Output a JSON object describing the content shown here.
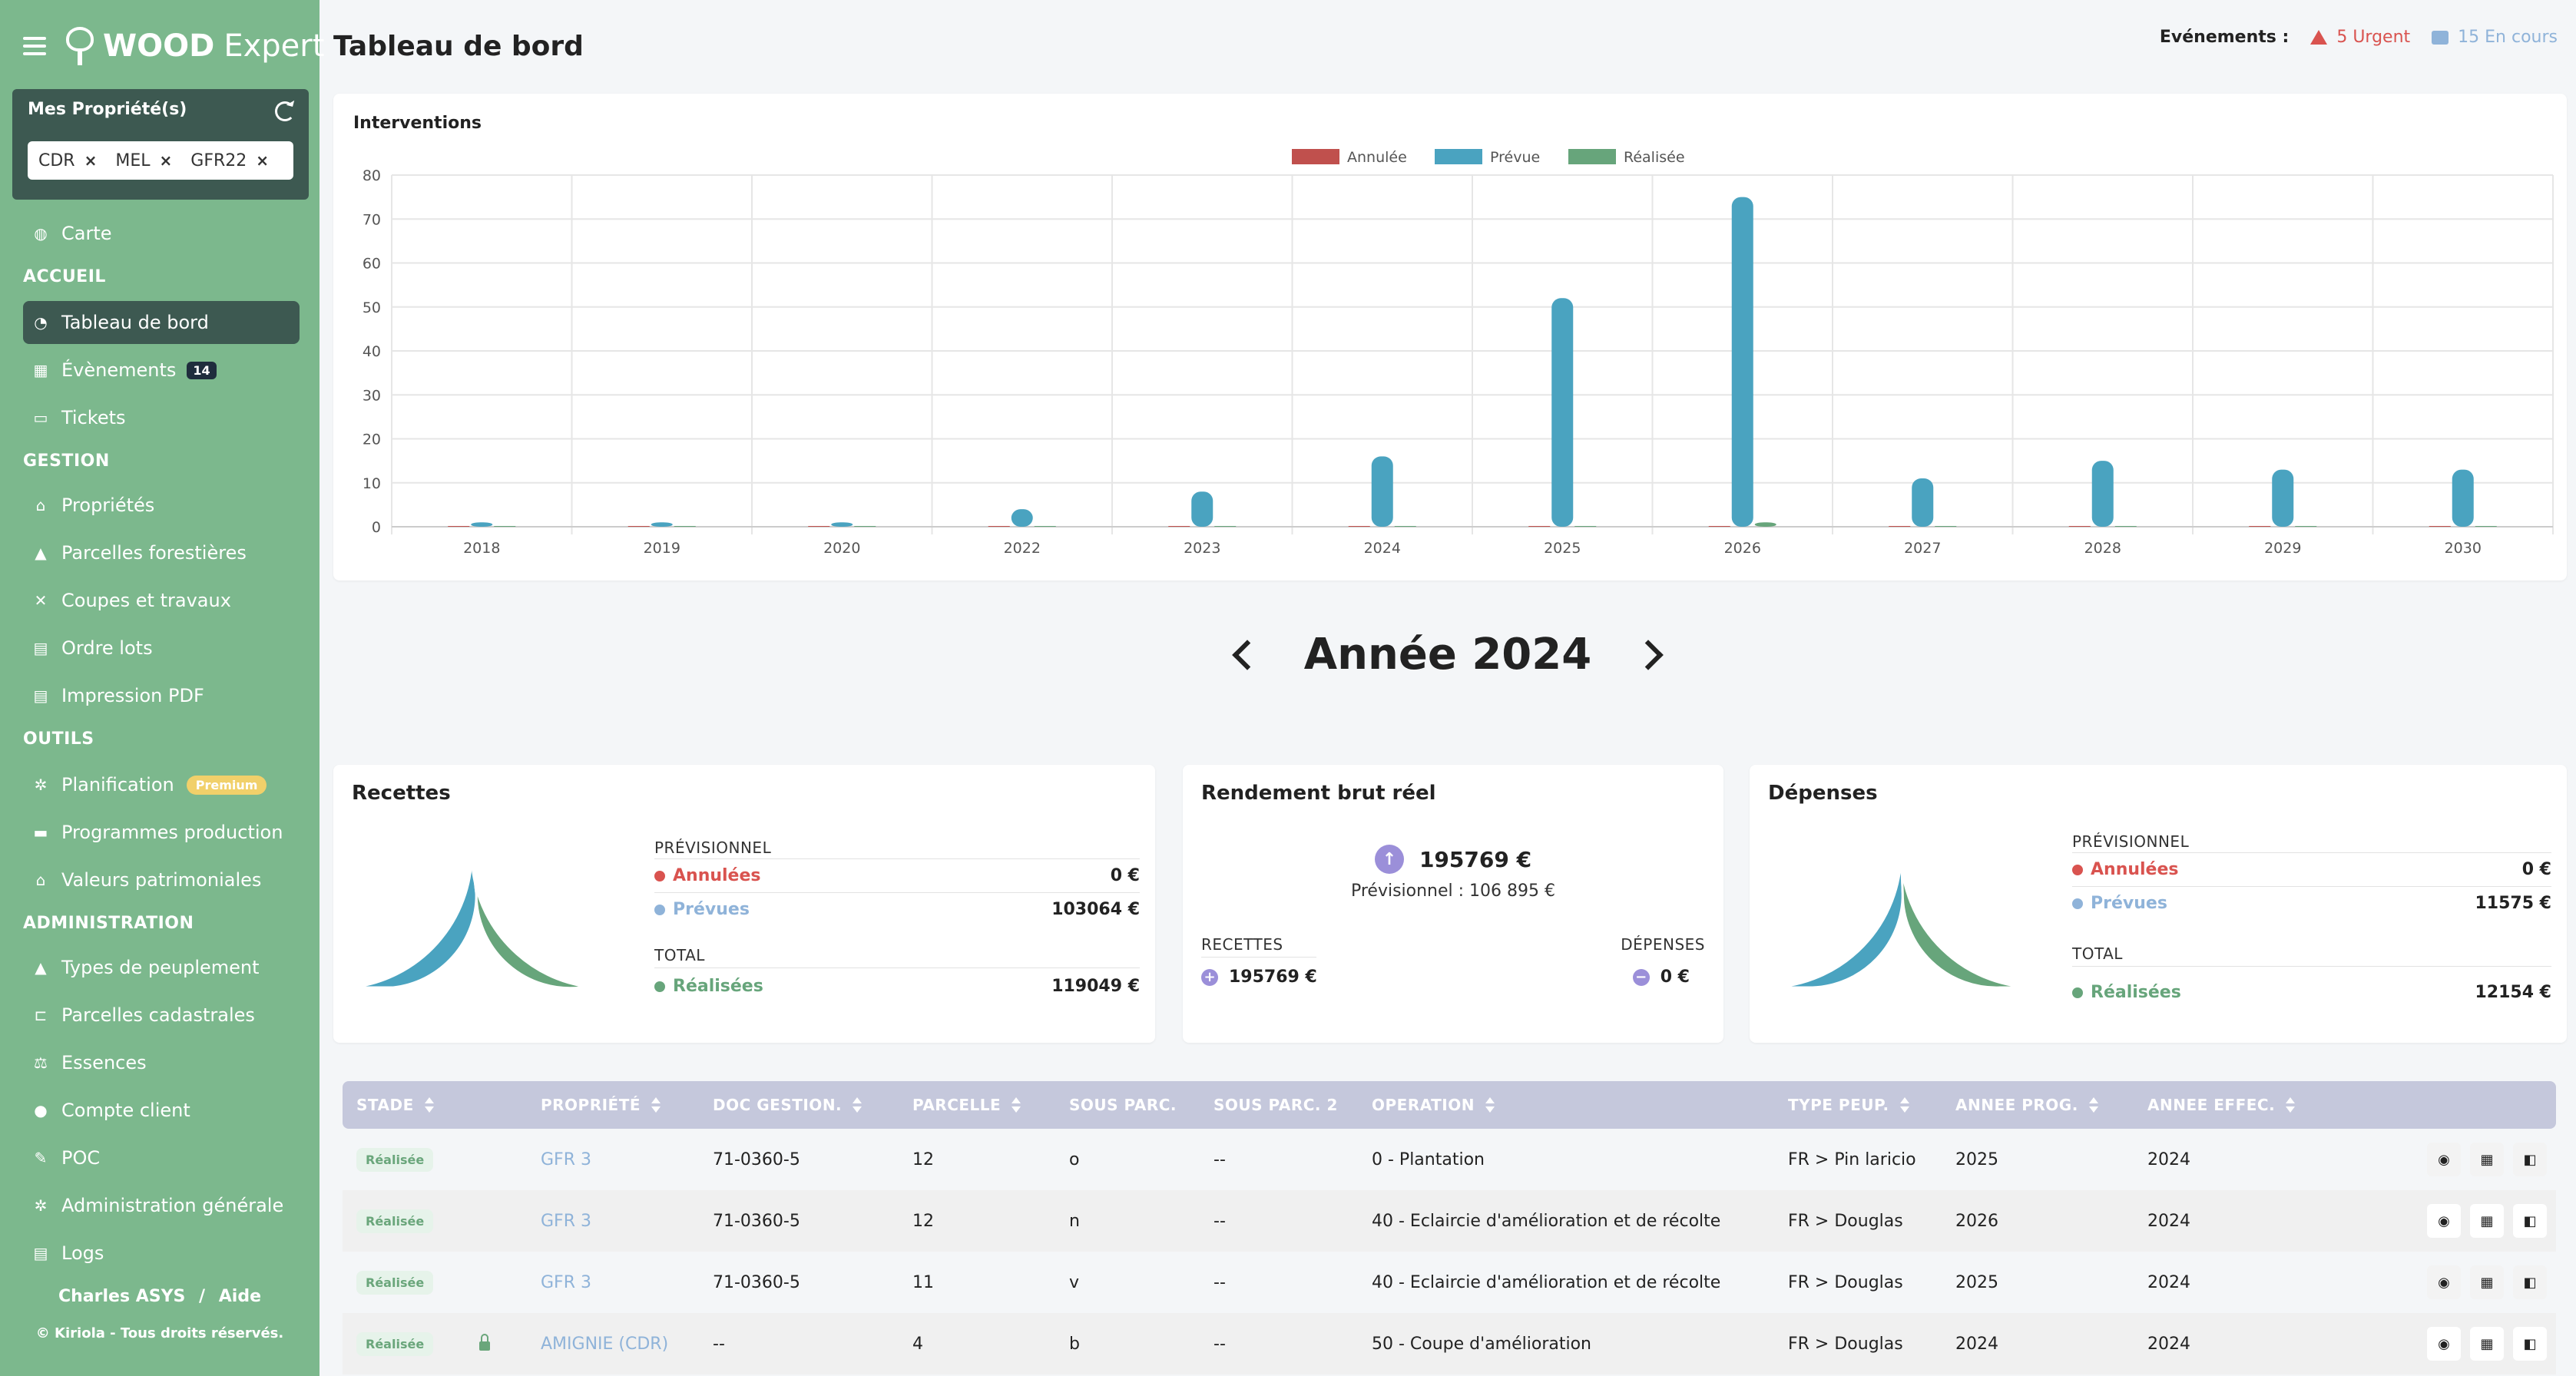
{
  "brand": {
    "bold": "WOOD",
    "light": "Expert"
  },
  "properties": {
    "title": "Mes Propriété(s)",
    "tags": [
      "CDR",
      "MEL",
      "GFR22"
    ],
    "remove_symbol": "×"
  },
  "nav": {
    "carte": "Carte",
    "section_accueil": "ACCUEIL",
    "tableau": "Tableau de bord",
    "evenements": "Évènements",
    "evenements_badge": "14",
    "tickets": "Tickets",
    "section_gestion": "GESTION",
    "proprietes": "Propriétés",
    "parcelles_forestieres": "Parcelles forestières",
    "coupes": "Coupes et travaux",
    "ordre_lots": "Ordre lots",
    "impression": "Impression PDF",
    "section_outils": "OUTILS",
    "planification": "Planification",
    "premium": "Premium",
    "programmes": "Programmes production",
    "valeurs": "Valeurs patrimoniales",
    "section_admin": "ADMINISTRATION",
    "types_peuplement": "Types de peuplement",
    "parcelles_cadastrales": "Parcelles cadastrales",
    "essences": "Essences",
    "compte_client": "Compte client",
    "poc": "POC",
    "admin_generale": "Administration générale",
    "logs": "Logs"
  },
  "footer": {
    "user": "Charles ASYS",
    "separator": "/",
    "help": "Aide",
    "copyright": "© Kiriola - Tous droits réservés."
  },
  "header": {
    "title": "Tableau de bord",
    "events_label": "Evénements :",
    "urgent": "5 Urgent",
    "en_cours": "15 En cours"
  },
  "chart_title": "Interventions",
  "chart_data": {
    "type": "bar",
    "categories": [
      "2018",
      "2019",
      "2020",
      "2022",
      "2023",
      "2024",
      "2025",
      "2026",
      "2027",
      "2028",
      "2029",
      "2030"
    ],
    "series": [
      {
        "name": "Annulée",
        "color": "#c0504d",
        "values": [
          0,
          0,
          0,
          0,
          0,
          0,
          0,
          0,
          0,
          0,
          0,
          0
        ]
      },
      {
        "name": "Prévue",
        "color": "#4aa3c0",
        "values": [
          1,
          1,
          1,
          4,
          8,
          16,
          52,
          75,
          11,
          15,
          13,
          13
        ]
      },
      {
        "name": "Réalisée",
        "color": "#67a57b",
        "values": [
          0,
          0,
          0,
          0,
          0,
          0,
          0,
          1,
          0,
          0,
          0,
          0
        ]
      }
    ],
    "ylim": [
      0,
      80
    ],
    "yticks": [
      0,
      10,
      20,
      30,
      40,
      50,
      60,
      70,
      80
    ],
    "legend": "top-center",
    "grid": true
  },
  "year": {
    "label": "Année 2024"
  },
  "recettes": {
    "title": "Recettes",
    "previsionnel_label": "PRÉVISIONNEL",
    "annulees_label": "Annulées",
    "annulees_value": "0 €",
    "prevues_label": "Prévues",
    "prevues_value": "103064 €",
    "total_label": "TOTAL",
    "realisees_label": "Réalisées",
    "realisees_value": "119049 €",
    "gauge": {
      "prevues": 103064,
      "realisees": 119049
    }
  },
  "rendement": {
    "title": "Rendement brut réel",
    "value": "195769 €",
    "previsionnel": "Prévisionnel : 106 895 €",
    "recettes_label": "RECETTES",
    "recettes_value": "195769 €",
    "depenses_label": "DÉPENSES",
    "depenses_value": "0 €"
  },
  "depenses": {
    "title": "Dépenses",
    "previsionnel_label": "PRÉVISIONNEL",
    "annulees_label": "Annulées",
    "annulees_value": "0 €",
    "prevues_label": "Prévues",
    "prevues_value": "11575 €",
    "total_label": "TOTAL",
    "realisees_label": "Réalisées",
    "realisees_value": "12154 €",
    "gauge": {
      "prevues": 11575,
      "realisees": 12154
    }
  },
  "colors": {
    "annulee": "#d9534f",
    "prevue": "#8fb3d9",
    "realisee": "#67a57b",
    "gauge_blue": "#4aa3c0",
    "gauge_green": "#67a57b"
  },
  "table": {
    "headers": [
      "STADE",
      "PROPRIÉTÉ",
      "DOC GESTION.",
      "PARCELLE",
      "SOUS PARC.",
      "SOUS PARC. 2",
      "OPERATION",
      "TYPE PEUP.",
      "ANNEE PROG.",
      "ANNEE EFFEC."
    ],
    "rows": [
      [
        "Réalisée",
        "GFR 3",
        "71-0360-5",
        "12",
        "o",
        "--",
        "0 - Plantation",
        "FR > Pin laricio",
        "2025",
        "2024"
      ],
      [
        "Réalisée",
        "GFR 3",
        "71-0360-5",
        "12",
        "n",
        "--",
        "40 - Eclaircie d'amélioration et de récolte",
        "FR > Douglas",
        "2026",
        "2024"
      ],
      [
        "Réalisée",
        "GFR 3",
        "71-0360-5",
        "11",
        "v",
        "--",
        "40 - Eclaircie d'amélioration et de récolte",
        "FR > Douglas",
        "2025",
        "2024"
      ],
      [
        "Réalisée",
        "AMIGNIE (CDR)",
        "--",
        "4",
        "b",
        "--",
        "50 - Coupe d'amélioration",
        "FR > Douglas",
        "2024",
        "2024"
      ]
    ],
    "row_icons": [
      "eye-icon",
      "calendar-icon",
      "map-icon"
    ]
  }
}
